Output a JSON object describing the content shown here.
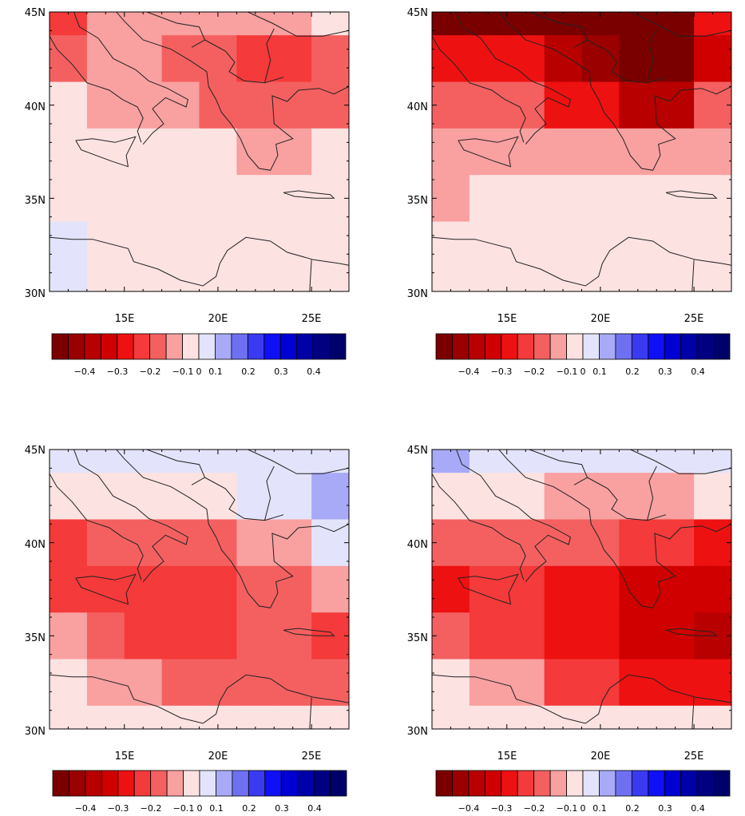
{
  "figure": {
    "panels": [
      {
        "id": "panel-1",
        "lat_labels": [
          "45N",
          "40N",
          "35N",
          "30N"
        ],
        "lon_labels": [
          "15E",
          "20E",
          "25E"
        ],
        "rows": [
          [
            -0.15,
            -0.05,
            -0.05,
            -0.05,
            -0.05,
            -0.05,
            -0.05,
            0.0
          ],
          [
            -0.1,
            -0.05,
            -0.05,
            -0.1,
            -0.1,
            -0.15,
            -0.15,
            -0.1
          ],
          [
            0.0,
            -0.05,
            -0.05,
            -0.05,
            -0.1,
            -0.1,
            -0.1,
            -0.1
          ],
          [
            0.0,
            0.0,
            0.0,
            0.0,
            0.0,
            -0.05,
            -0.05,
            0.0
          ],
          [
            0.0,
            0.0,
            0.0,
            0.0,
            0.0,
            0.0,
            0.0,
            0.0
          ],
          [
            0.05,
            0.0,
            0.0,
            0.0,
            0.0,
            0.0,
            0.0,
            0.0
          ],
          [
            0.05,
            0.0,
            0.0,
            0.0,
            0.0,
            0.0,
            0.0,
            0.0
          ]
        ]
      },
      {
        "id": "panel-2",
        "lat_labels": [
          "45N",
          "40N",
          "35N",
          "30N"
        ],
        "lon_labels": [
          "15E",
          "20E",
          "25E"
        ],
        "rows": [
          [
            -0.4,
            -0.4,
            -0.4,
            -0.4,
            -0.4,
            -0.4,
            -0.4,
            -0.2
          ],
          [
            -0.2,
            -0.2,
            -0.2,
            -0.3,
            -0.35,
            -0.4,
            -0.45,
            -0.25
          ],
          [
            -0.1,
            -0.1,
            -0.1,
            -0.2,
            -0.2,
            -0.3,
            -0.3,
            -0.1
          ],
          [
            -0.05,
            -0.05,
            -0.05,
            -0.05,
            -0.05,
            -0.05,
            -0.05,
            -0.05
          ],
          [
            -0.05,
            0.0,
            0.0,
            0.0,
            0.0,
            0.0,
            0.0,
            0.0
          ],
          [
            0.0,
            0.0,
            0.0,
            0.0,
            0.0,
            0.0,
            0.0,
            0.0
          ],
          [
            0.0,
            0.0,
            0.0,
            0.0,
            0.0,
            0.0,
            0.0,
            0.0
          ]
        ]
      },
      {
        "id": "panel-3",
        "lat_labels": [
          "45N",
          "40N",
          "35N",
          "30N"
        ],
        "lon_labels": [
          "15E",
          "20E",
          "25E"
        ],
        "rows": [
          [
            0.05,
            0.05,
            0.05,
            0.05,
            0.05,
            0.05,
            0.05,
            0.05
          ],
          [
            0.0,
            0.0,
            0.0,
            0.0,
            0.0,
            0.05,
            0.05,
            0.1
          ],
          [
            -0.15,
            -0.1,
            -0.1,
            -0.1,
            -0.1,
            -0.05,
            -0.05,
            0.05
          ],
          [
            -0.15,
            -0.15,
            -0.15,
            -0.15,
            -0.15,
            -0.1,
            -0.1,
            -0.05
          ],
          [
            -0.05,
            -0.1,
            -0.15,
            -0.15,
            -0.15,
            -0.1,
            -0.1,
            -0.15
          ],
          [
            0.0,
            -0.05,
            -0.05,
            -0.1,
            -0.1,
            -0.1,
            -0.1,
            -0.1
          ],
          [
            0.0,
            0.0,
            0.0,
            0.0,
            0.0,
            0.0,
            0.0,
            0.0
          ]
        ]
      },
      {
        "id": "panel-4",
        "lat_labels": [
          "45N",
          "40N",
          "35N",
          "30N"
        ],
        "lon_labels": [
          "15E",
          "20E",
          "25E"
        ],
        "rows": [
          [
            0.1,
            0.05,
            0.05,
            0.05,
            0.05,
            0.05,
            0.05,
            0.05
          ],
          [
            0.0,
            0.0,
            0.0,
            -0.05,
            -0.05,
            -0.05,
            -0.05,
            0.0
          ],
          [
            -0.1,
            -0.1,
            -0.1,
            -0.1,
            -0.1,
            -0.15,
            -0.15,
            -0.2
          ],
          [
            -0.2,
            -0.15,
            -0.15,
            -0.2,
            -0.2,
            -0.25,
            -0.25,
            -0.25
          ],
          [
            -0.1,
            -0.15,
            -0.15,
            -0.2,
            -0.2,
            -0.25,
            -0.25,
            -0.3
          ],
          [
            0.0,
            -0.05,
            -0.05,
            -0.15,
            -0.15,
            -0.2,
            -0.2,
            -0.2
          ],
          [
            0.0,
            0.0,
            0.0,
            0.0,
            0.0,
            0.0,
            0.0,
            0.0
          ]
        ]
      }
    ],
    "colorbar": {
      "labels": [
        "−0.4",
        "−0.3",
        "−0.2",
        "−0.1",
        "0",
        "0.1",
        "0.2",
        "0.3",
        "0.4"
      ],
      "colors": [
        "#7a0000",
        "#9a0000",
        "#b80000",
        "#d00000",
        "#ee1111",
        "#f43a3a",
        "#f46060",
        "#f9a0a0",
        "#fde2e2",
        "#e3e4fb",
        "#a8aaf7",
        "#6f70f1",
        "#3a3af0",
        "#1010f6",
        "#0000d4",
        "#0000a8",
        "#000080",
        "#00006a"
      ]
    }
  }
}
